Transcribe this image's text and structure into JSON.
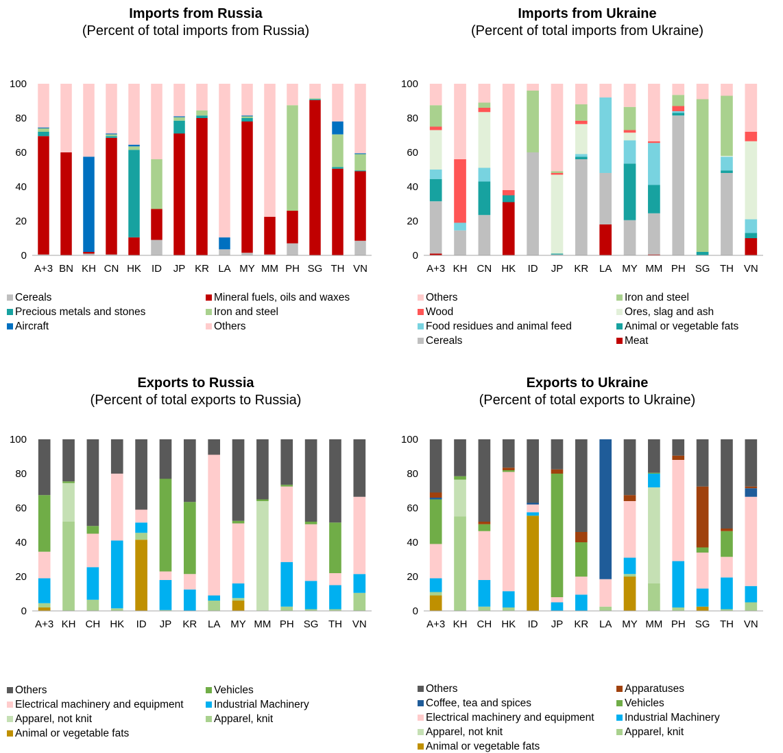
{
  "charts": [
    {
      "id": "p0",
      "title": "Imports from Russia",
      "subtitle": "(Percent of total imports from Russia)",
      "chart_data": {
        "type": "bar",
        "stacked": true,
        "categories": [
          "A+3",
          "BN",
          "KH",
          "CN",
          "HK",
          "ID",
          "JP",
          "KR",
          "LA",
          "MY",
          "MM",
          "PH",
          "SG",
          "TH",
          "VN"
        ],
        "ylim": [
          0,
          100
        ],
        "yticks": [
          0,
          20,
          40,
          60,
          80,
          100
        ],
        "series": [
          {
            "name": "Cereals",
            "color": "#bfbfbf",
            "values": [
              0.5,
              0,
              1,
              0.5,
              0,
              9,
              0,
              0,
              3.5,
              1.5,
              0.5,
              7,
              0,
              0,
              8.5
            ]
          },
          {
            "name": "Mineral fuels, oils and waxes",
            "color": "#c00000",
            "values": [
              69,
              60,
              1,
              68,
              10.5,
              18,
              71,
              80,
              0,
              76.5,
              22,
              19,
              90.5,
              50.5,
              40.5
            ]
          },
          {
            "name": "Precious metals and stones",
            "color": "#17a2a0",
            "values": [
              2.5,
              0,
              0,
              1,
              51,
              0,
              7.5,
              1.5,
              0,
              2,
              0,
              0,
              0.5,
              1,
              0.5
            ]
          },
          {
            "name": "Iron and steel",
            "color": "#a9d18e",
            "values": [
              2,
              0,
              0,
              1,
              2,
              29,
              2,
              3,
              0,
              1,
              0,
              61.5,
              0.5,
              19,
              9.5
            ]
          },
          {
            "name": "Aircraft",
            "color": "#0070c0",
            "values": [
              0.5,
              0,
              55.5,
              0.5,
              1,
              0,
              0.5,
              0,
              7,
              0.5,
              0,
              0,
              0,
              7.5,
              0.5
            ]
          },
          {
            "name": "Others",
            "color": "#ffcccc",
            "values": [
              25.5,
              40,
              42.5,
              29,
              35.5,
              44,
              19,
              15.5,
              89.5,
              18.5,
              77.5,
              12.5,
              8.5,
              22,
              40.5
            ]
          }
        ]
      },
      "legend_order": [
        0,
        1,
        2,
        3,
        4,
        5
      ]
    },
    {
      "id": "p1",
      "title": "Imports from Ukraine",
      "subtitle": "(Percent of total imports from Ukraine)",
      "chart_data": {
        "type": "bar",
        "stacked": true,
        "categories": [
          "A+3",
          "KH",
          "CN",
          "HK",
          "ID",
          "JP",
          "KR",
          "LA",
          "MY",
          "MM",
          "PH",
          "SG",
          "TH",
          "VN"
        ],
        "ylim": [
          0,
          100
        ],
        "yticks": [
          0,
          20,
          40,
          60,
          80,
          100
        ],
        "series": [
          {
            "name": "Meat",
            "color": "#c00000",
            "values": [
              1,
              0,
              0,
              31,
              0,
              0,
              0,
              18,
              0,
              0.5,
              0,
              0,
              0,
              10
            ]
          },
          {
            "name": "Cereals",
            "color": "#bfbfbf",
            "values": [
              30.5,
              14.5,
              23.5,
              0,
              60,
              0.5,
              56,
              30,
              20.5,
              24,
              81.5,
              0,
              48,
              0
            ]
          },
          {
            "name": "Animal or vegetable fats",
            "color": "#17a2a0",
            "values": [
              13,
              0,
              19.5,
              4,
              0,
              0.5,
              1.5,
              0,
              33,
              16.5,
              1.5,
              2,
              1.5,
              3
            ]
          },
          {
            "name": "Food residues and animal feed",
            "color": "#78d3e0",
            "values": [
              5.5,
              4.5,
              8,
              0,
              0,
              0,
              1.5,
              44,
              13.5,
              24.5,
              1,
              0,
              8,
              8
            ]
          },
          {
            "name": "Ores, slag and ash",
            "color": "#e2f0d9",
            "values": [
              23,
              0,
              32.5,
              0,
              0,
              46,
              17.5,
              0,
              4.5,
              0,
              0,
              0,
              0.5,
              45.5
            ]
          },
          {
            "name": "Wood",
            "color": "#ff5555",
            "values": [
              2,
              37,
              2.5,
              3,
              0,
              1,
              2,
              0,
              1.5,
              1,
              3,
              0,
              0,
              5.5
            ]
          },
          {
            "name": "Iron and steel",
            "color": "#a9d18e",
            "values": [
              12.5,
              0,
              3,
              0,
              36,
              1,
              9.5,
              0,
              13.5,
              0,
              6.5,
              89,
              35,
              0
            ]
          },
          {
            "name": "Others",
            "color": "#ffcccc",
            "values": [
              12.5,
              44,
              11,
              62,
              4,
              51,
              12,
              8,
              13.5,
              33.5,
              6.5,
              9,
              7,
              28
            ]
          }
        ]
      },
      "legend_order": [
        7,
        6,
        5,
        4,
        3,
        2,
        1,
        0
      ]
    },
    {
      "id": "p2",
      "title": "Exports to Russia",
      "subtitle": "(Percent of total exports to Russia)",
      "chart_data": {
        "type": "bar",
        "stacked": true,
        "categories": [
          "A+3",
          "KH",
          "CH",
          "HK",
          "ID",
          "JP",
          "KR",
          "LA",
          "MY",
          "MM",
          "PH",
          "SG",
          "TH",
          "VN"
        ],
        "ylim": [
          0,
          100
        ],
        "yticks": [
          0,
          20,
          40,
          60,
          80,
          100
        ],
        "series": [
          {
            "name": "Animal or vegetable fats",
            "color": "#bf9000",
            "values": [
              2,
              0,
              0,
              0,
              41.5,
              0,
              0,
              0,
              6,
              0,
              0,
              0,
              0,
              0
            ]
          },
          {
            "name": "Apparel, knit",
            "color": "#a9d18e",
            "values": [
              2.5,
              52,
              6.5,
              1.5,
              4,
              0.5,
              0,
              6,
              1.5,
              0,
              2.5,
              1,
              1,
              10.5
            ]
          },
          {
            "name": "Apparel, not knit",
            "color": "#c5e0b4",
            "values": [
              0,
              22.5,
              0,
              0,
              0,
              0,
              0,
              0,
              0,
              64,
              0,
              0,
              0,
              0
            ]
          },
          {
            "name": "Industrial Machinery",
            "color": "#00b0f0",
            "values": [
              14.5,
              0,
              19,
              39.5,
              6,
              17.5,
              12.5,
              3,
              8.5,
              0,
              26,
              16.5,
              14,
              11
            ]
          },
          {
            "name": "Electrical machinery and equipment",
            "color": "#ffcccc",
            "values": [
              15.5,
              0,
              19.5,
              39,
              7.5,
              5,
              9,
              82,
              35,
              0,
              44,
              33,
              7,
              45
            ]
          },
          {
            "name": "Vehicles",
            "color": "#70ad47",
            "values": [
              33,
              1,
              4.5,
              0,
              0,
              54,
              42,
              0,
              1.5,
              1,
              1,
              1.5,
              29.5,
              0
            ]
          },
          {
            "name": "Others",
            "color": "#595959",
            "values": [
              32.5,
              24.5,
              50.5,
              20,
              41,
              23,
              36.5,
              9,
              47.5,
              35,
              26.5,
              48,
              48.5,
              33.5
            ]
          }
        ]
      },
      "legend_order": [
        6,
        5,
        4,
        3,
        2,
        1,
        0
      ]
    },
    {
      "id": "p3",
      "title": "Exports to Ukraine",
      "subtitle": "(Percent of total exports to Ukraine)",
      "chart_data": {
        "type": "bar",
        "stacked": true,
        "categories": [
          "A+3",
          "KH",
          "CH",
          "HK",
          "ID",
          "JP",
          "KR",
          "LA",
          "MY",
          "MM",
          "PH",
          "SG",
          "TH",
          "VN"
        ],
        "ylim": [
          0,
          100
        ],
        "yticks": [
          0,
          20,
          40,
          60,
          80,
          100
        ],
        "series": [
          {
            "name": "Animal or vegetable fats",
            "color": "#bf9000",
            "values": [
              9,
              0,
              0,
              0,
              55.5,
              0,
              0,
              0,
              20,
              0,
              0,
              2.5,
              0,
              0
            ]
          },
          {
            "name": "Apparel, knit",
            "color": "#a9d18e",
            "values": [
              2,
              55,
              2.5,
              2,
              0,
              0,
              0,
              2.5,
              1.5,
              16,
              2,
              0,
              1,
              5
            ]
          },
          {
            "name": "Apparel, not knit",
            "color": "#c5e0b4",
            "values": [
              0,
              21.5,
              0,
              0,
              0,
              0,
              0,
              0,
              0,
              56,
              0,
              0,
              0,
              0
            ]
          },
          {
            "name": "Industrial Machinery",
            "color": "#00b0f0",
            "values": [
              8,
              0,
              15.5,
              9.5,
              2,
              5,
              9.5,
              0,
              9.5,
              8,
              27,
              10.5,
              18.5,
              9.5
            ]
          },
          {
            "name": "Electrical machinery and equipment",
            "color": "#ffcccc",
            "values": [
              20,
              0,
              28.5,
              69.5,
              4.5,
              3,
              10.5,
              16,
              33,
              0,
              59,
              21,
              12,
              52
            ]
          },
          {
            "name": "Vehicles",
            "color": "#70ad47",
            "values": [
              26,
              2,
              4,
              1,
              0,
              72,
              20,
              0,
              0,
              0.5,
              0,
              3,
              15,
              0
            ]
          },
          {
            "name": "Coffee, tea and spices",
            "color": "#1f5c99",
            "values": [
              1,
              0,
              0,
              0,
              1,
              0,
              0,
              81.5,
              0,
              0,
              0,
              0,
              0,
              5
            ]
          },
          {
            "name": "Apparatuses",
            "color": "#a0410d",
            "values": [
              3,
              0,
              1.5,
              1.5,
              0,
              2.5,
              6,
              0,
              3.5,
              0,
              2.5,
              35.5,
              1.5,
              1
            ]
          },
          {
            "name": "Others",
            "color": "#595959",
            "values": [
              31,
              21.5,
              48,
              16.5,
              37,
              17.5,
              54,
              0,
              32.5,
              19.5,
              9.5,
              27.5,
              52,
              27.5
            ]
          }
        ]
      },
      "legend_order": [
        8,
        7,
        6,
        5,
        4,
        3,
        2,
        1,
        0
      ]
    }
  ]
}
